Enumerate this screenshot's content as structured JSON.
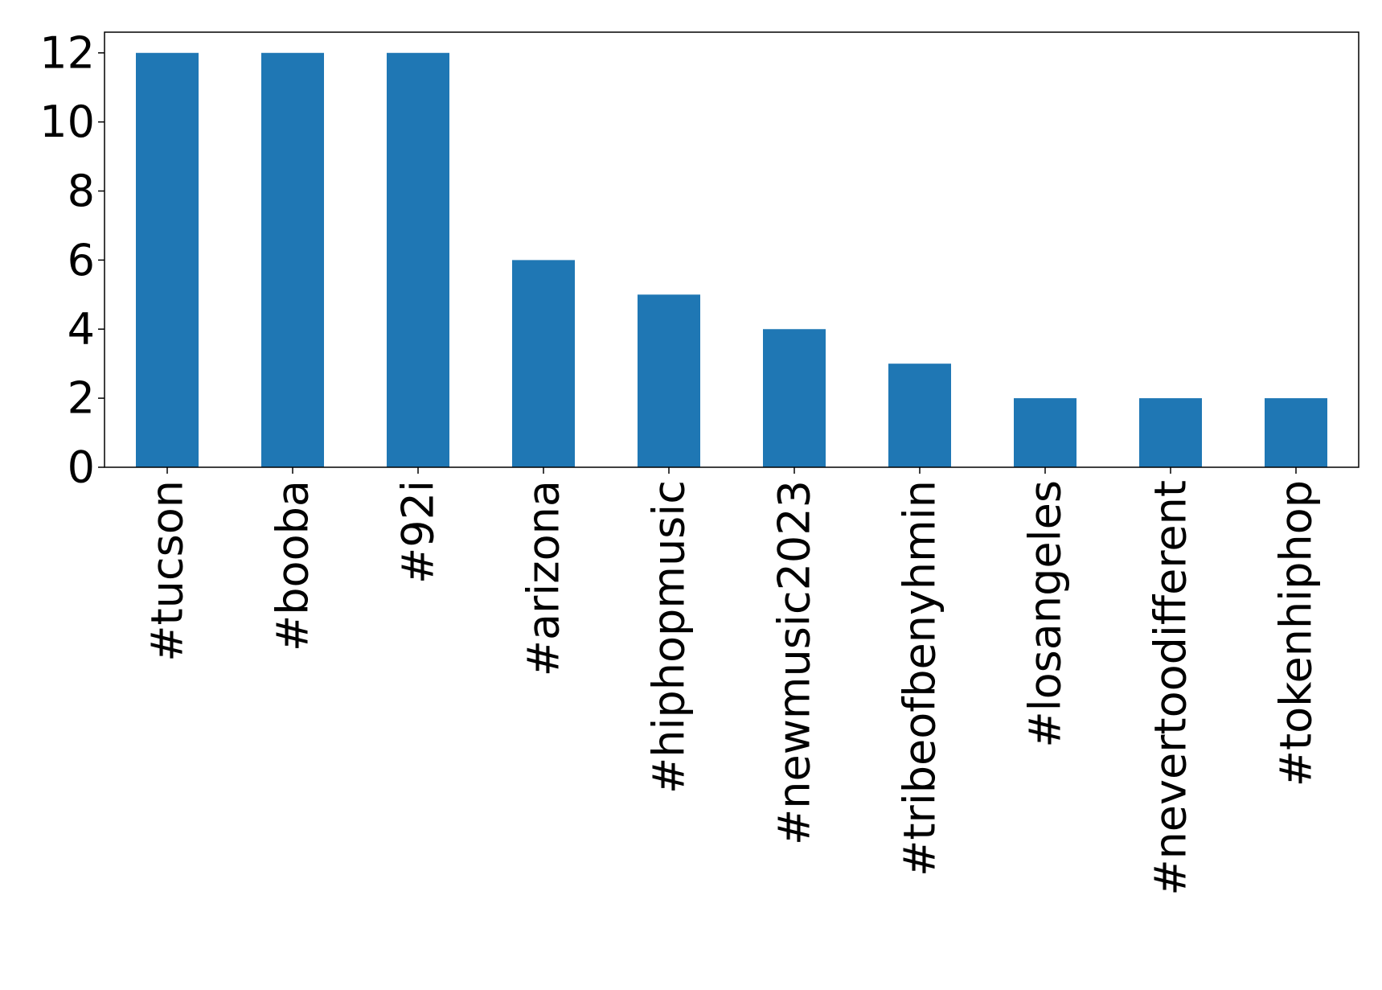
{
  "chart_data": {
    "type": "bar",
    "title": "",
    "xlabel": "",
    "ylabel": "",
    "categories": [
      "#tucson",
      "#booba",
      "#92i",
      "#arizona",
      "#hiphopmusic",
      "#newmusic2023",
      "#tribeofbenyhmin",
      "#losangeles",
      "#nevertoodifferent",
      "#tokenhiphop"
    ],
    "values": [
      12,
      12,
      12,
      6,
      5,
      4,
      3,
      2,
      2,
      2
    ],
    "ylim": [
      0,
      12.6
    ],
    "yticks": [
      "0",
      "2",
      "4",
      "6",
      "8",
      "10",
      "12"
    ],
    "grid": false,
    "legend": "none",
    "bar_color": "#1f77b4"
  }
}
